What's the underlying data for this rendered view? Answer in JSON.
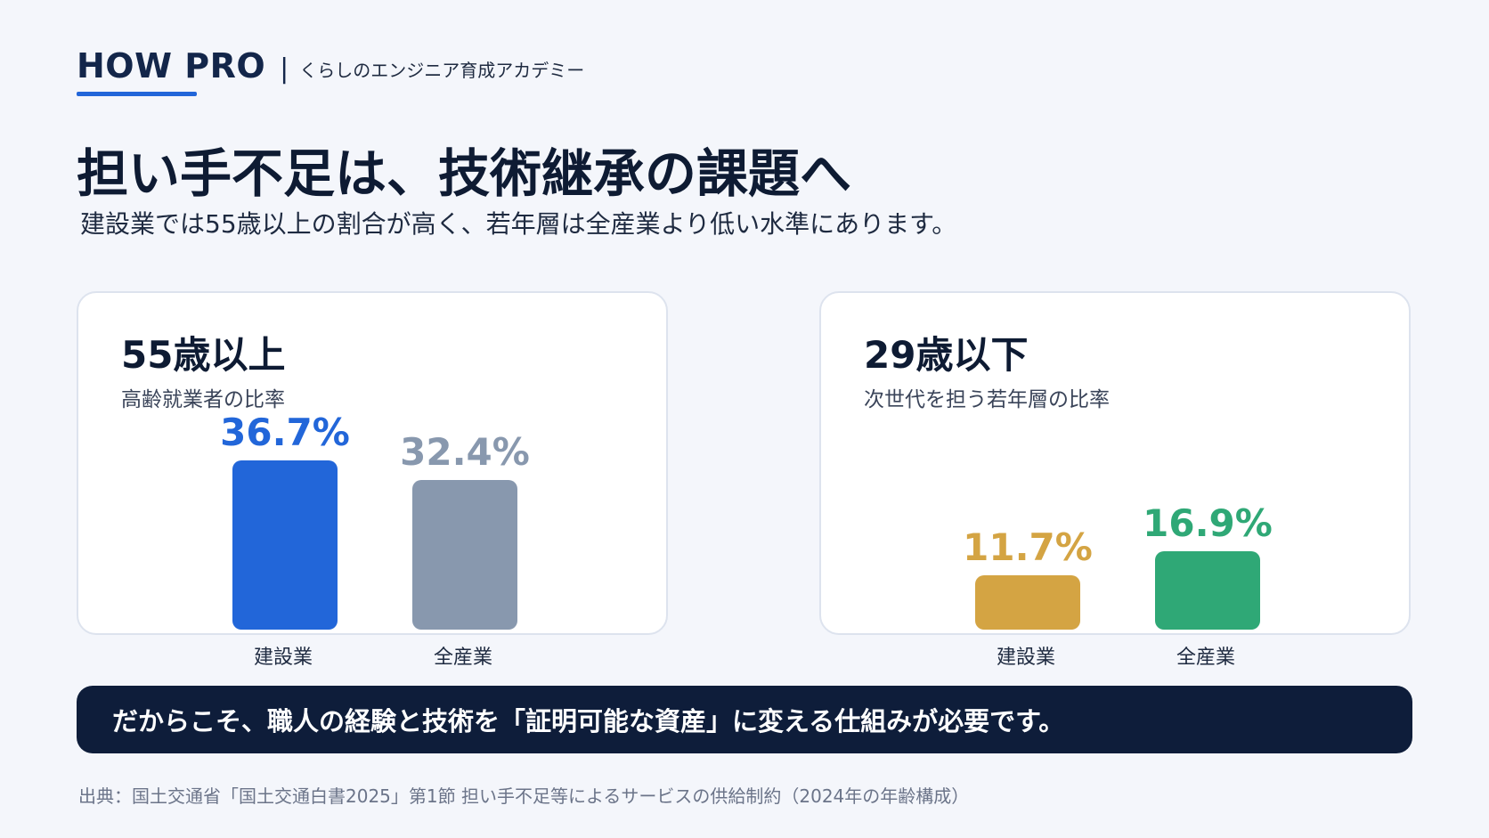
{
  "brand": {
    "logo": "HOW PRO",
    "separator": "|",
    "tagline": "くらしのエンジニア育成アカデミー"
  },
  "title": "担い手不足は、技術継承の課題へ",
  "subtitle": "建設業では55歳以上の割合が高く、若年層は全産業より低い水準にあります。",
  "chart_data": [
    {
      "type": "bar",
      "title": "55歳以上",
      "subtitle": "高齢就業者の比率",
      "categories": [
        "建設業",
        "全産業"
      ],
      "values": [
        36.7,
        32.4
      ],
      "value_labels": [
        "36.7%",
        "32.4%"
      ],
      "colors": [
        "#2266d9",
        "#8898ae"
      ],
      "label_colors": [
        "#2266d9",
        "#8898ae"
      ],
      "ylim": [
        0,
        37
      ]
    },
    {
      "type": "bar",
      "title": "29歳以下",
      "subtitle": "次世代を担う若年層の比率",
      "categories": [
        "建設業",
        "全産業"
      ],
      "values": [
        11.7,
        16.9
      ],
      "value_labels": [
        "11.7%",
        "16.9%"
      ],
      "colors": [
        "#d4a443",
        "#2fa876"
      ],
      "label_colors": [
        "#d4a443",
        "#2fa876"
      ],
      "ylim": [
        0,
        37
      ]
    }
  ],
  "banner": {
    "text": "だからこそ、職人の経験と技術を「証明可能な資産」に変える仕組みが必要です。"
  },
  "source": "出典：国土交通省「国土交通白書2025」第1節 担い手不足等によるサービスの供給制約（2024年の年齢構成）"
}
